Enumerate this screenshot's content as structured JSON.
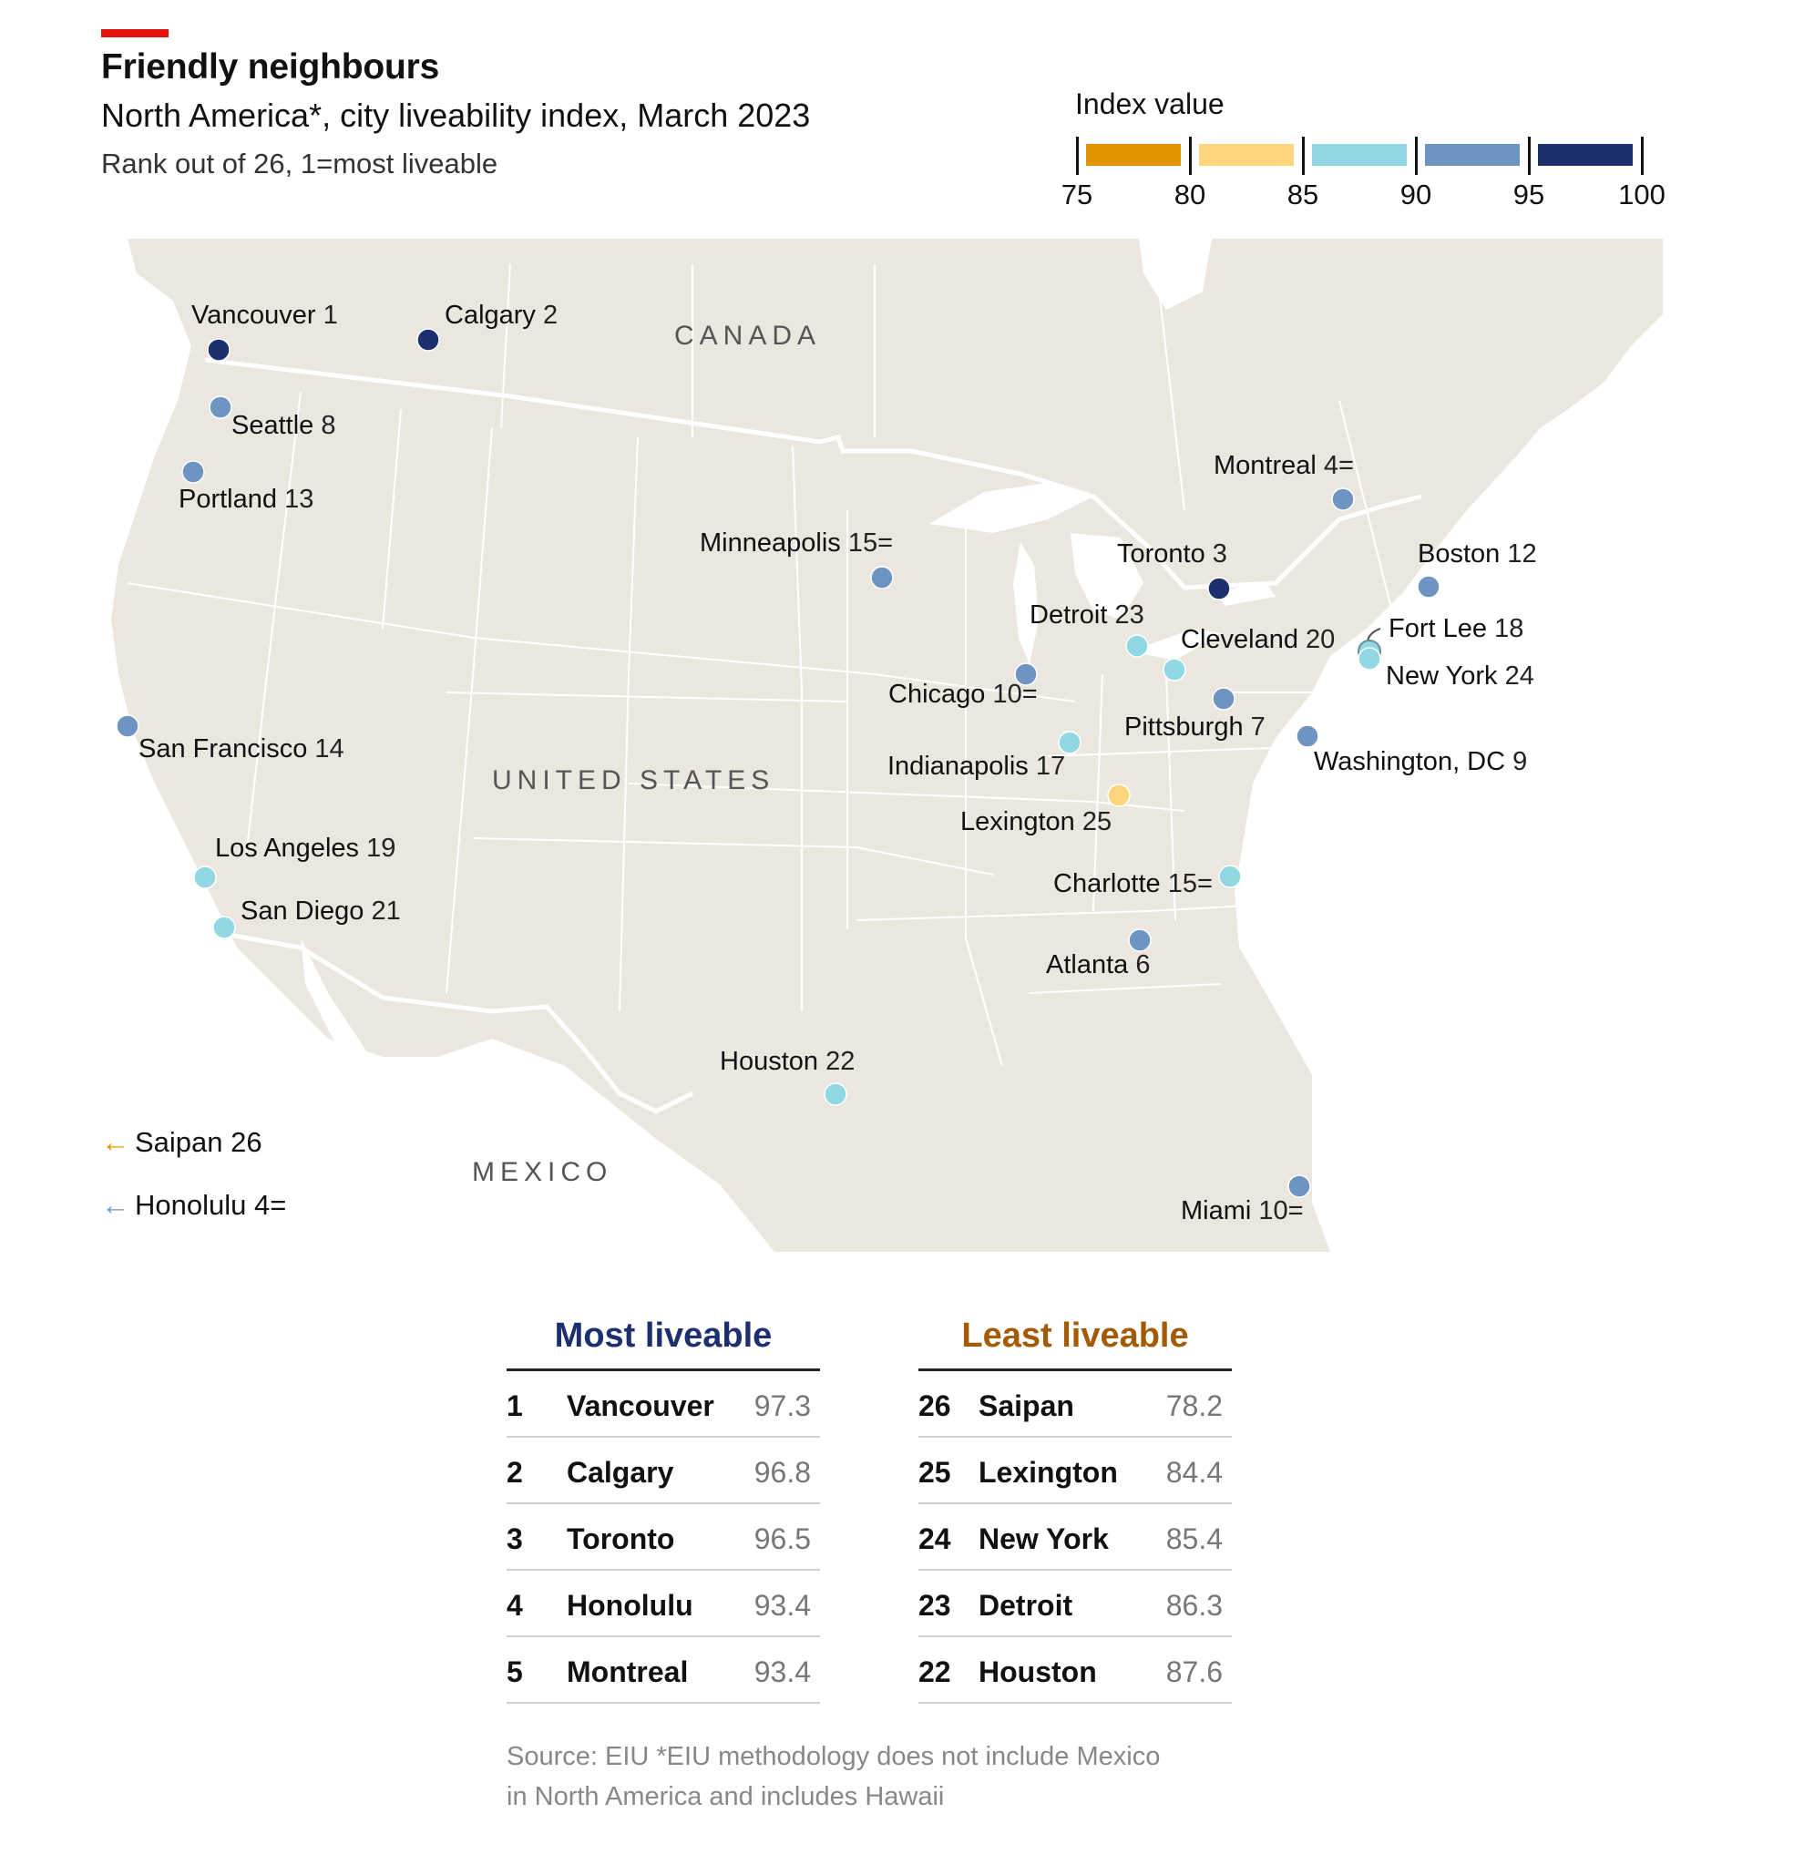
{
  "header": {
    "title": "Friendly neighbours",
    "subtitle": "North America*, city liveability index, March 2023",
    "note": "Rank out of 26, 1=most liveable"
  },
  "legend": {
    "title": "Index value",
    "ticks": [
      "75",
      "80",
      "85",
      "90",
      "95",
      "100"
    ],
    "bins": [
      {
        "from": 75,
        "to": 80,
        "color": "#e09400"
      },
      {
        "from": 80,
        "to": 85,
        "color": "#fdd57a"
      },
      {
        "from": 85,
        "to": 90,
        "color": "#8fd8e4"
      },
      {
        "from": 90,
        "to": 95,
        "color": "#6e95c2"
      },
      {
        "from": 95,
        "to": 100,
        "color": "#1d2f6f"
      }
    ]
  },
  "map": {
    "countries": {
      "canada": "CANADA",
      "us": "UNITED STATES",
      "mexico": "MEXICO"
    },
    "cities": [
      {
        "id": "vancouver",
        "name": "Vancouver",
        "rank": "1",
        "color": "#1d2f6f"
      },
      {
        "id": "calgary",
        "name": "Calgary",
        "rank": "2",
        "color": "#1d2f6f"
      },
      {
        "id": "toronto",
        "name": "Toronto",
        "rank": "3",
        "color": "#1d2f6f"
      },
      {
        "id": "montreal",
        "name": "Montreal",
        "rank": "4=",
        "color": "#6e95c2"
      },
      {
        "id": "atlanta",
        "name": "Atlanta",
        "rank": "6",
        "color": "#6e95c2"
      },
      {
        "id": "pittsburgh",
        "name": "Pittsburgh",
        "rank": "7",
        "color": "#6e95c2"
      },
      {
        "id": "seattle",
        "name": "Seattle",
        "rank": "8",
        "color": "#6e95c2"
      },
      {
        "id": "washington",
        "name": "Washington, DC",
        "rank": "9",
        "color": "#6e95c2"
      },
      {
        "id": "chicago",
        "name": "Chicago",
        "rank": "10=",
        "color": "#6e95c2"
      },
      {
        "id": "miami",
        "name": "Miami",
        "rank": "10=",
        "color": "#6e95c2"
      },
      {
        "id": "boston",
        "name": "Boston",
        "rank": "12",
        "color": "#6e95c2"
      },
      {
        "id": "portland",
        "name": "Portland",
        "rank": "13",
        "color": "#6e95c2"
      },
      {
        "id": "sanfrancisco",
        "name": "San Francisco",
        "rank": "14",
        "color": "#6e95c2"
      },
      {
        "id": "minneapolis",
        "name": "Minneapolis",
        "rank": "15=",
        "color": "#6e95c2"
      },
      {
        "id": "charlotte",
        "name": "Charlotte",
        "rank": "15=",
        "color": "#8fd8e4"
      },
      {
        "id": "indianapolis",
        "name": "Indianapolis",
        "rank": "17",
        "color": "#8fd8e4"
      },
      {
        "id": "fortlee",
        "name": "Fort Lee",
        "rank": "18",
        "color": "#8fd8e4"
      },
      {
        "id": "losangeles",
        "name": "Los Angeles",
        "rank": "19",
        "color": "#8fd8e4"
      },
      {
        "id": "cleveland",
        "name": "Cleveland",
        "rank": "20",
        "color": "#8fd8e4"
      },
      {
        "id": "sandiego",
        "name": "San Diego",
        "rank": "21",
        "color": "#8fd8e4"
      },
      {
        "id": "houston",
        "name": "Houston",
        "rank": "22",
        "color": "#8fd8e4"
      },
      {
        "id": "detroit",
        "name": "Detroit",
        "rank": "23",
        "color": "#8fd8e4"
      },
      {
        "id": "newyork",
        "name": "New York",
        "rank": "24",
        "color": "#8fd8e4"
      },
      {
        "id": "lexington",
        "name": "Lexington",
        "rank": "25",
        "color": "#fdd57a"
      }
    ],
    "offmap": [
      {
        "id": "saipan",
        "name": "Saipan",
        "rank": "26",
        "arrow": "←",
        "color": "#e09400"
      },
      {
        "id": "honolulu",
        "name": "Honolulu",
        "rank": "4=",
        "arrow": "←",
        "color": "#6e95c2"
      }
    ]
  },
  "tables": {
    "most": {
      "title": "Most liveable",
      "color": "#1d2f6f",
      "rows": [
        {
          "rank": "1",
          "city": "Vancouver",
          "value": "97.3"
        },
        {
          "rank": "2",
          "city": "Calgary",
          "value": "96.8"
        },
        {
          "rank": "3",
          "city": "Toronto",
          "value": "96.5"
        },
        {
          "rank": "4",
          "city": "Honolulu",
          "value": "93.4"
        },
        {
          "rank": "5",
          "city": "Montreal",
          "value": "93.4"
        }
      ]
    },
    "least": {
      "title": "Least liveable",
      "color": "#a35a00",
      "rows": [
        {
          "rank": "26",
          "city": "Saipan",
          "value": "78.2"
        },
        {
          "rank": "25",
          "city": "Lexington",
          "value": "84.4"
        },
        {
          "rank": "24",
          "city": "New York",
          "value": "85.4"
        },
        {
          "rank": "23",
          "city": "Detroit",
          "value": "86.3"
        },
        {
          "rank": "22",
          "city": "Houston",
          "value": "87.6"
        }
      ]
    }
  },
  "source": {
    "line1": "Source: EIU   *EIU methodology does not include Mexico",
    "line2": "in North America and includes Hawaii"
  }
}
